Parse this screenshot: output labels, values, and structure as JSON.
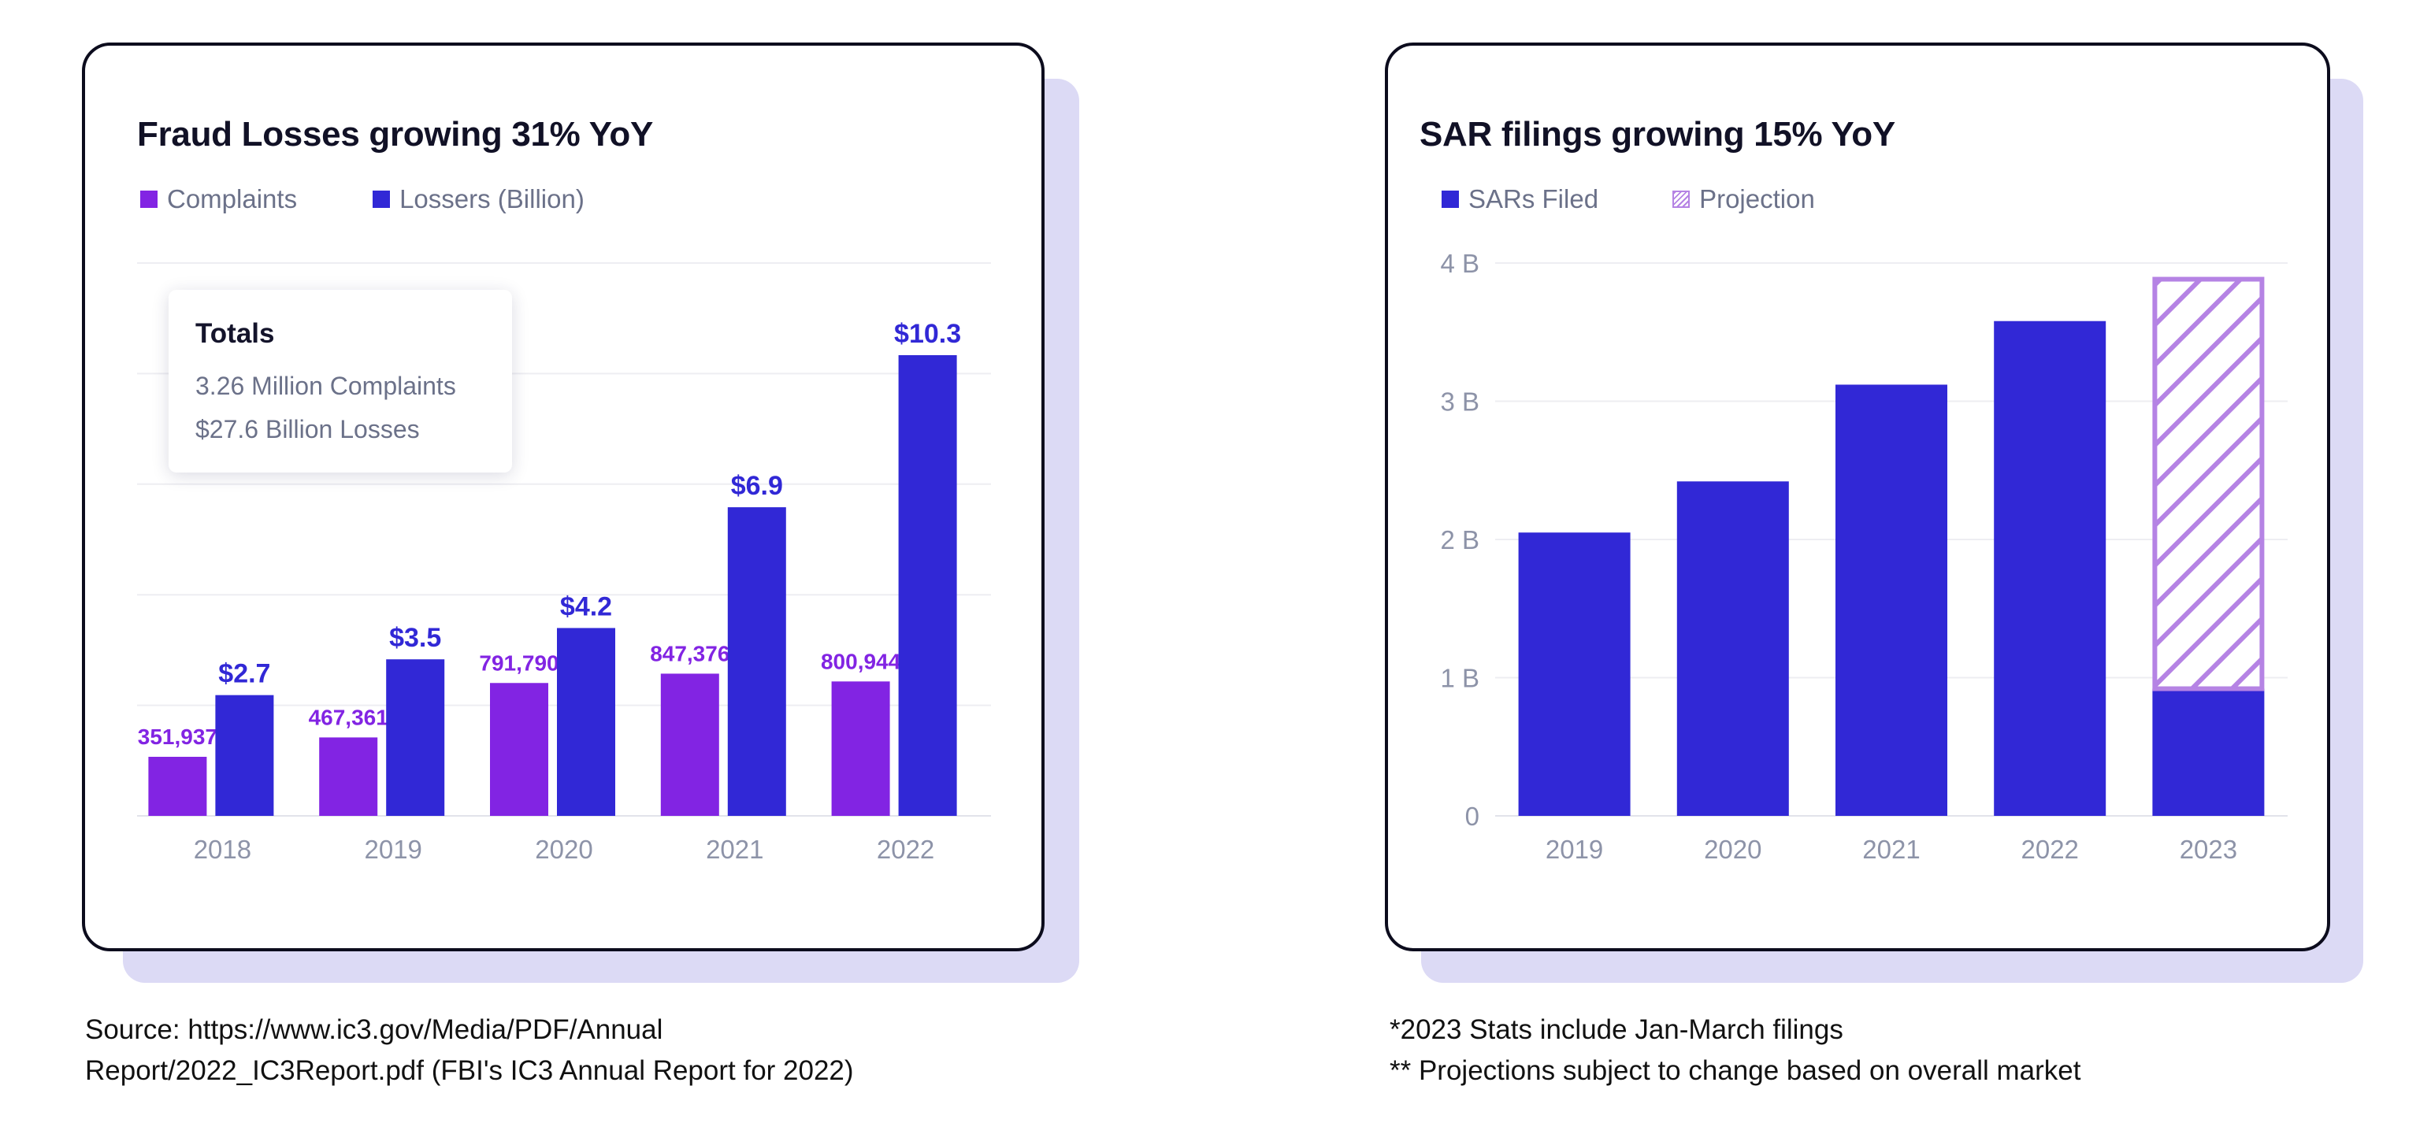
{
  "colors": {
    "complaints": "#8224e3",
    "losses": "#3128d6",
    "sars": "#3128d6",
    "projection": "#b583e4",
    "card_shadow": "#dcdaf5",
    "axis_text": "#8d93a8",
    "grid": "#eeeef2"
  },
  "fraud_card": {
    "title": "Fraud Losses growing 31% YoY",
    "legend": [
      "Complaints",
      "Lossers (Billion)"
    ],
    "tooltip": {
      "title": "Totals",
      "lines": [
        "3.26 Million Complaints",
        "$27.6 Billion Losses"
      ]
    }
  },
  "sar_card": {
    "title": "SAR filings growing 15% YoY",
    "legend": [
      "SARs Filed",
      "Projection"
    ]
  },
  "footnotes": {
    "source": [
      "Source: https://www.ic3.gov/Media/PDF/Annual",
      "Report/2022_IC3Report.pdf (FBI's IC3 Annual Report for 2022)"
    ],
    "notes": [
      "*2023 Stats include Jan-March filings",
      "** Projections subject to change based on overall market"
    ]
  },
  "chart_data": [
    {
      "type": "bar",
      "title": "Fraud Losses growing 31% YoY",
      "categories": [
        "2018",
        "2019",
        "2020",
        "2021",
        "2022"
      ],
      "series": [
        {
          "name": "Complaints",
          "values": [
            351937,
            467361,
            791790,
            847376,
            800944
          ],
          "labels": [
            "351,937",
            "467,361",
            "791,790",
            "847,376",
            "800,944"
          ]
        },
        {
          "name": "Lossers (Billion)",
          "values": [
            2.7,
            3.5,
            4.2,
            6.9,
            10.3
          ],
          "labels": [
            "$2.7",
            "$3.5",
            "$4.2",
            "$6.9",
            "$10.3"
          ]
        }
      ],
      "y_axis_labels": false,
      "grid": true,
      "legend_position": "top-left"
    },
    {
      "type": "bar",
      "title": "SAR filings growing 15% YoY",
      "categories": [
        "2019",
        "2020",
        "2021",
        "2022",
        "2023"
      ],
      "series": [
        {
          "name": "SARs Filed",
          "values": [
            2.05,
            2.42,
            3.12,
            3.58,
            0.92
          ]
        },
        {
          "name": "Projection",
          "values": [
            null,
            null,
            null,
            null,
            2.98
          ]
        }
      ],
      "stacked": true,
      "yticks": [
        "0",
        "1 B",
        "2 B",
        "3 B",
        "4 B"
      ],
      "ylim": [
        0,
        4
      ],
      "grid": true,
      "legend_position": "top-left"
    }
  ]
}
